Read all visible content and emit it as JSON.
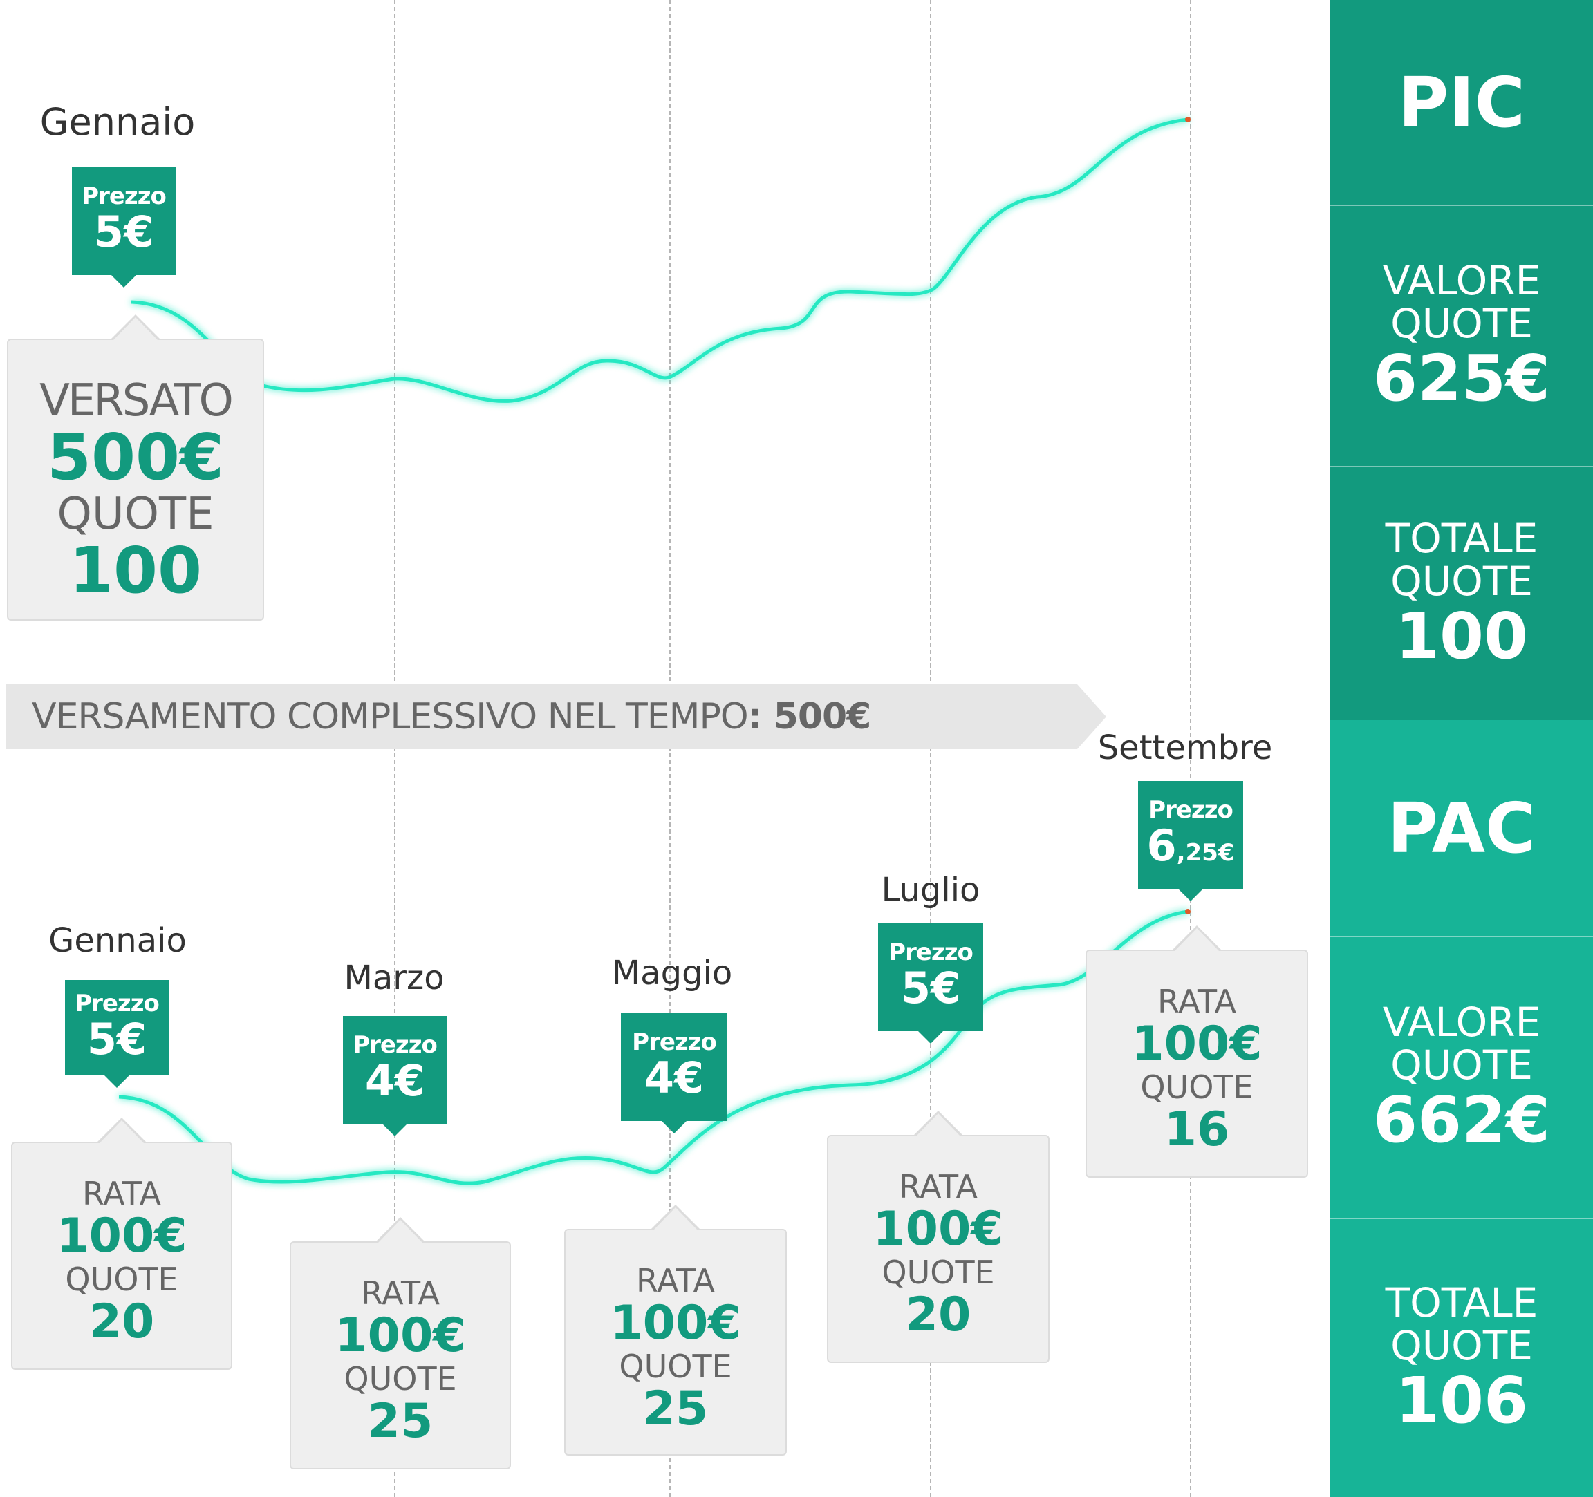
{
  "pic": {
    "month": "Gennaio",
    "price": {
      "label": "Prezzo",
      "value": "5€"
    },
    "versato_label": "VERSATO",
    "versato_value": "500€",
    "quote_label": "QUOTE",
    "quote_value": "100"
  },
  "banner": {
    "text": "VERSAMENTO COMPLESSIVO NEL TEMPO",
    "value": ": 500€"
  },
  "pac": [
    {
      "month": "Gennaio",
      "price_label": "Prezzo",
      "price": "5€",
      "rata_label": "RATA",
      "rata": "100€",
      "quote_label": "QUOTE",
      "quote": "20"
    },
    {
      "month": "Marzo",
      "price_label": "Prezzo",
      "price": "4€",
      "rata_label": "RATA",
      "rata": "100€",
      "quote_label": "QUOTE",
      "quote": "25"
    },
    {
      "month": "Maggio",
      "price_label": "Prezzo",
      "price": "4€",
      "rata_label": "RATA",
      "rata": "100€",
      "quote_label": "QUOTE",
      "quote": "25"
    },
    {
      "month": "Luglio",
      "price_label": "Prezzo",
      "price": "5€",
      "rata_label": "RATA",
      "rata": "100€",
      "quote_label": "QUOTE",
      "quote": "20"
    },
    {
      "month": "Settembre",
      "price_label": "Prezzo",
      "price_main": "6",
      "price_small": ",25€",
      "rata_label": "RATA",
      "rata": "100€",
      "quote_label": "QUOTE",
      "quote": "16"
    }
  ],
  "side": {
    "pic_title": "PIC",
    "pic_valore_l1": "VALORE",
    "pic_valore_l2": "QUOTE",
    "pic_valore": "625€",
    "pic_totale_l1": "TOTALE",
    "pic_totale_l2": "QUOTE",
    "pic_totale": "100",
    "pac_title": "PAC",
    "pac_valore_l1": "VALORE",
    "pac_valore_l2": "QUOTE",
    "pac_valore": "662€",
    "pac_totale_l1": "TOTALE",
    "pac_totale_l2": "QUOTE",
    "pac_totale": "106"
  },
  "colors": {
    "primary": "#129a7e",
    "secondary": "#17b497",
    "line": "#27e8c2",
    "box": "#efefef"
  }
}
